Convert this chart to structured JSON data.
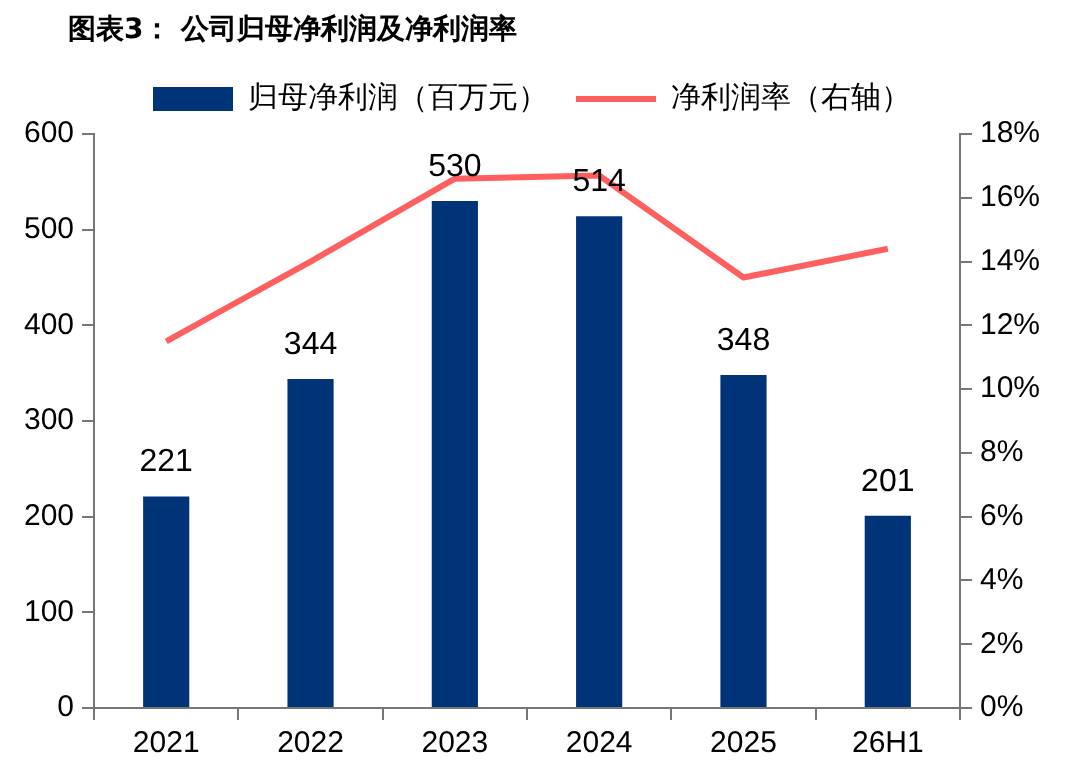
{
  "chart_data": {
    "type": "bar",
    "title": "图表3：  公司归母净利润及净利润率",
    "categories": [
      "2021",
      "2022",
      "2023",
      "2024",
      "2025",
      "26H1"
    ],
    "series": [
      {
        "name": "归母净利润（百万元）",
        "color": "#003478",
        "values": [
          221,
          344,
          530,
          514,
          348,
          201
        ],
        "data_labels": true
      },
      {
        "name": "净利润率（右轴）",
        "type": "line",
        "axis": "y2",
        "color": "#ff5f5f",
        "values": [
          11.5,
          14.0,
          16.6,
          16.7,
          13.5,
          14.4
        ]
      }
    ],
    "ylim": [
      0,
      600
    ],
    "yticks": [
      0,
      100,
      200,
      300,
      400,
      500,
      600
    ],
    "y2lim": [
      0,
      18
    ],
    "y2ticks": [
      {
        "value": 0,
        "label": "0%"
      },
      {
        "value": 2,
        "label": "2%"
      },
      {
        "value": 4,
        "label": "4%"
      },
      {
        "value": 6,
        "label": "6%"
      },
      {
        "value": 8,
        "label": "8%"
      },
      {
        "value": 10,
        "label": "10%"
      },
      {
        "value": 12,
        "label": "12%"
      },
      {
        "value": 14,
        "label": "14%"
      },
      {
        "value": 16,
        "label": "16%"
      },
      {
        "value": 18,
        "label": "18%"
      }
    ],
    "grid": false,
    "legend": "top",
    "marker": "none"
  }
}
